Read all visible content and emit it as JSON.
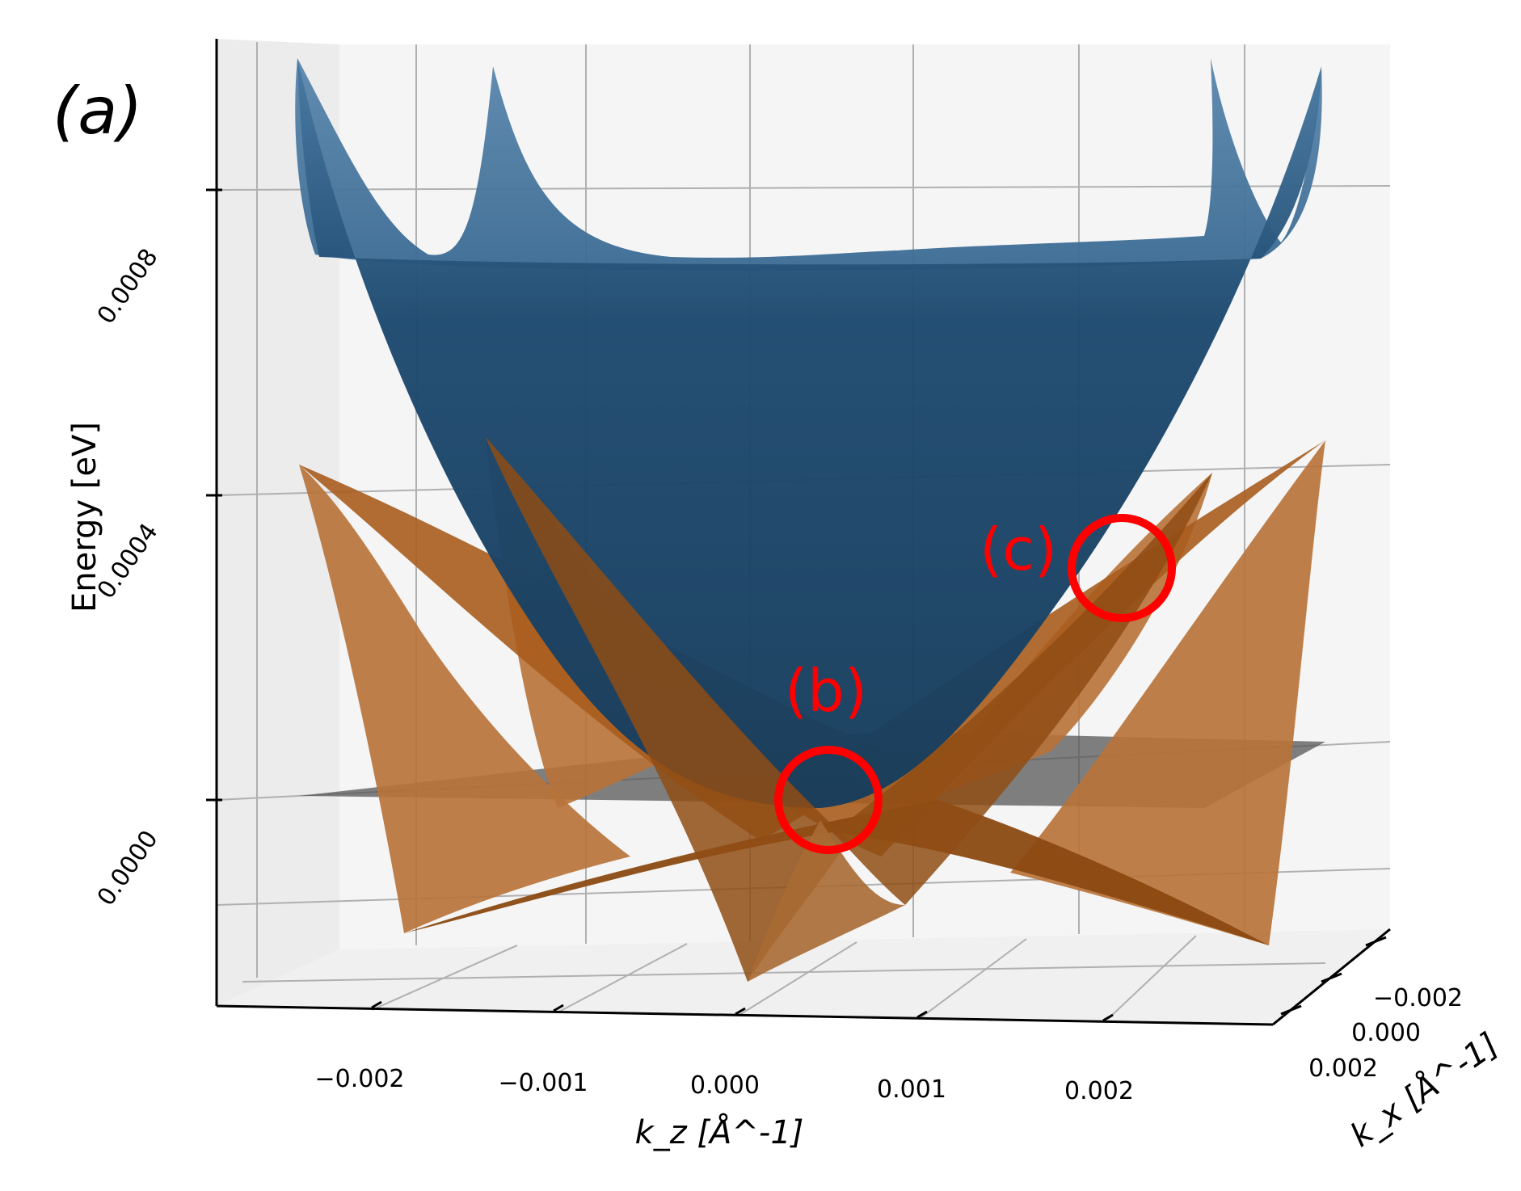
{
  "panel_label": "(a)",
  "annotations": [
    "(b)",
    "(c)"
  ],
  "colors": {
    "upper_band": "#1f4e79",
    "lower_band": "#a85a14",
    "plane": "#555555",
    "marker": "#ff0000",
    "pane": "#f2f2f2",
    "grid": "#b0b0b0"
  },
  "chart_data": {
    "type": "surface3d",
    "title": "",
    "xlabel": "k_z [Å^-1]",
    "ylabel": "k_x [Å^-1]",
    "zlabel": "Energy [eV]",
    "x_ticks": [
      "−0.002",
      "−0.001",
      "0.000",
      "0.001",
      "0.002"
    ],
    "y_ticks": [
      "−0.002",
      "0.000",
      "0.002"
    ],
    "z_ticks": [
      "0.0000",
      "0.0004",
      "0.0008"
    ],
    "xlim": [
      -0.0025,
      0.0025
    ],
    "ylim": [
      -0.0025,
      0.0025
    ],
    "zlim": [
      -0.00025,
      0.001
    ],
    "series": [
      {
        "surface": "upper",
        "color": "#1f4e79",
        "min_energy": 0.0
      },
      {
        "surface": "lower",
        "color": "#a85a14",
        "min_energy": -0.00022
      },
      {
        "surface": "plane",
        "color": "#555555",
        "energy": 0.0
      }
    ],
    "markers": [
      {
        "label": "(b)",
        "kz": 0.0,
        "energy": 0.0
      },
      {
        "label": "(c)",
        "kz": 0.0021,
        "energy": 0.00031
      }
    ]
  }
}
